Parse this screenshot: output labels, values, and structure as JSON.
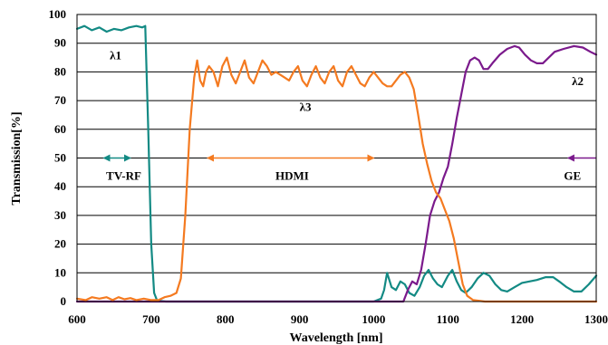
{
  "chart_data": {
    "type": "line",
    "xlabel": "Wavelength  [nm]",
    "ylabel": "Transmission[%]",
    "xlim": [
      600,
      1300
    ],
    "ylim": [
      0,
      100
    ],
    "xticks": [
      600,
      700,
      800,
      900,
      1000,
      1100,
      1200,
      1300
    ],
    "yticks": [
      0,
      10,
      20,
      30,
      40,
      50,
      60,
      70,
      80,
      90,
      100
    ],
    "grid": "horizontal",
    "colors": {
      "teal": "#138a84",
      "orange": "#f47a20",
      "purple": "#7b1a8c"
    },
    "series": [
      {
        "name": "λ1",
        "color": "#138a84",
        "points": [
          [
            600,
            95
          ],
          [
            610,
            96
          ],
          [
            620,
            94.5
          ],
          [
            630,
            95.5
          ],
          [
            640,
            94
          ],
          [
            650,
            95
          ],
          [
            660,
            94.5
          ],
          [
            670,
            95.5
          ],
          [
            680,
            96
          ],
          [
            688,
            95.5
          ],
          [
            692,
            96
          ],
          [
            696,
            60
          ],
          [
            700,
            20
          ],
          [
            704,
            3
          ],
          [
            708,
            0.3
          ],
          [
            720,
            0
          ],
          [
            1000,
            0
          ],
          [
            1005,
            0.5
          ],
          [
            1010,
            1
          ],
          [
            1014,
            4
          ],
          [
            1018,
            10
          ],
          [
            1024,
            5
          ],
          [
            1030,
            4
          ],
          [
            1036,
            7
          ],
          [
            1042,
            6
          ],
          [
            1048,
            3
          ],
          [
            1055,
            2
          ],
          [
            1062,
            5
          ],
          [
            1068,
            9
          ],
          [
            1074,
            11
          ],
          [
            1080,
            8
          ],
          [
            1086,
            6
          ],
          [
            1092,
            5
          ],
          [
            1100,
            9
          ],
          [
            1106,
            11
          ],
          [
            1112,
            7
          ],
          [
            1118,
            4
          ],
          [
            1124,
            3
          ],
          [
            1132,
            5
          ],
          [
            1140,
            8
          ],
          [
            1148,
            10
          ],
          [
            1156,
            9
          ],
          [
            1164,
            6
          ],
          [
            1172,
            4
          ],
          [
            1180,
            3.5
          ],
          [
            1190,
            5
          ],
          [
            1200,
            6.5
          ],
          [
            1210,
            7
          ],
          [
            1220,
            7.5
          ],
          [
            1232,
            8.5
          ],
          [
            1242,
            8.5
          ],
          [
            1250,
            7
          ],
          [
            1260,
            5
          ],
          [
            1270,
            3.5
          ],
          [
            1280,
            3.5
          ],
          [
            1290,
            6
          ],
          [
            1300,
            9
          ]
        ]
      },
      {
        "name": "λ2",
        "color": "#7b1a8c",
        "points": [
          [
            600,
            0
          ],
          [
            1040,
            0
          ],
          [
            1046,
            4
          ],
          [
            1052,
            7
          ],
          [
            1058,
            6
          ],
          [
            1064,
            11
          ],
          [
            1070,
            20
          ],
          [
            1076,
            30
          ],
          [
            1082,
            35
          ],
          [
            1088,
            38
          ],
          [
            1094,
            43
          ],
          [
            1100,
            47
          ],
          [
            1106,
            55
          ],
          [
            1112,
            64
          ],
          [
            1118,
            72
          ],
          [
            1124,
            80
          ],
          [
            1130,
            84
          ],
          [
            1136,
            85
          ],
          [
            1142,
            84
          ],
          [
            1148,
            81
          ],
          [
            1154,
            81
          ],
          [
            1160,
            83
          ],
          [
            1170,
            86
          ],
          [
            1180,
            88
          ],
          [
            1190,
            89
          ],
          [
            1196,
            88.5
          ],
          [
            1204,
            86
          ],
          [
            1212,
            84
          ],
          [
            1220,
            83
          ],
          [
            1228,
            83
          ],
          [
            1236,
            85
          ],
          [
            1244,
            87
          ],
          [
            1256,
            88
          ],
          [
            1270,
            89
          ],
          [
            1282,
            88.5
          ],
          [
            1292,
            87
          ],
          [
            1300,
            86
          ]
        ]
      },
      {
        "name": "λ3",
        "color": "#f47a20",
        "points": [
          [
            600,
            1
          ],
          [
            612,
            0.5
          ],
          [
            620,
            1.5
          ],
          [
            630,
            1
          ],
          [
            640,
            1.5
          ],
          [
            648,
            0.5
          ],
          [
            656,
            1.5
          ],
          [
            664,
            0.8
          ],
          [
            672,
            1.2
          ],
          [
            680,
            0.5
          ],
          [
            690,
            1
          ],
          [
            700,
            0.5
          ],
          [
            710,
            0.5
          ],
          [
            718,
            1.5
          ],
          [
            726,
            2
          ],
          [
            734,
            3
          ],
          [
            740,
            8
          ],
          [
            746,
            30
          ],
          [
            752,
            60
          ],
          [
            758,
            78
          ],
          [
            762,
            84
          ],
          [
            766,
            77
          ],
          [
            770,
            75
          ],
          [
            774,
            80
          ],
          [
            778,
            82
          ],
          [
            784,
            80
          ],
          [
            790,
            75
          ],
          [
            796,
            82
          ],
          [
            802,
            85
          ],
          [
            808,
            79
          ],
          [
            814,
            76
          ],
          [
            820,
            80
          ],
          [
            826,
            84
          ],
          [
            832,
            78
          ],
          [
            838,
            76
          ],
          [
            844,
            80
          ],
          [
            850,
            84
          ],
          [
            856,
            82
          ],
          [
            862,
            79
          ],
          [
            868,
            80
          ],
          [
            874,
            79
          ],
          [
            880,
            78
          ],
          [
            886,
            77
          ],
          [
            892,
            80
          ],
          [
            898,
            82
          ],
          [
            904,
            77
          ],
          [
            910,
            75
          ],
          [
            916,
            79
          ],
          [
            922,
            82
          ],
          [
            928,
            78
          ],
          [
            934,
            76
          ],
          [
            940,
            80
          ],
          [
            946,
            82
          ],
          [
            952,
            77
          ],
          [
            958,
            75
          ],
          [
            964,
            80
          ],
          [
            970,
            82
          ],
          [
            976,
            79
          ],
          [
            982,
            76
          ],
          [
            988,
            75
          ],
          [
            994,
            78
          ],
          [
            1000,
            80
          ],
          [
            1006,
            78
          ],
          [
            1012,
            76
          ],
          [
            1018,
            75
          ],
          [
            1024,
            75
          ],
          [
            1030,
            77
          ],
          [
            1036,
            79
          ],
          [
            1042,
            80
          ],
          [
            1048,
            78
          ],
          [
            1054,
            74
          ],
          [
            1060,
            65
          ],
          [
            1066,
            55
          ],
          [
            1072,
            48
          ],
          [
            1078,
            42
          ],
          [
            1084,
            38
          ],
          [
            1090,
            36
          ],
          [
            1096,
            32
          ],
          [
            1102,
            28
          ],
          [
            1108,
            22
          ],
          [
            1114,
            14
          ],
          [
            1120,
            6
          ],
          [
            1126,
            2
          ],
          [
            1134,
            0.5
          ],
          [
            1150,
            0
          ],
          [
            1300,
            0
          ]
        ]
      }
    ],
    "annotations": [
      {
        "text": "λ1",
        "x": 652,
        "y": 86
      },
      {
        "text": "λ2",
        "x": 1275,
        "y": 77
      },
      {
        "text": "λ3",
        "x": 908,
        "y": 68
      },
      {
        "text": "TV-RF",
        "x": 663,
        "y": 44
      },
      {
        "text": "HDMI",
        "x": 890,
        "y": 44
      },
      {
        "text": "GE",
        "x": 1268,
        "y": 44
      }
    ],
    "bands": [
      {
        "from": 636,
        "to": 672,
        "y": 50,
        "color": "#138a84",
        "ends": "both"
      },
      {
        "from": 776,
        "to": 1000,
        "y": 50,
        "color": "#f47a20",
        "ends": "both"
      },
      {
        "from": 1262,
        "to": 1300,
        "y": 50,
        "color": "#7b1a8c",
        "ends": "left"
      }
    ]
  }
}
